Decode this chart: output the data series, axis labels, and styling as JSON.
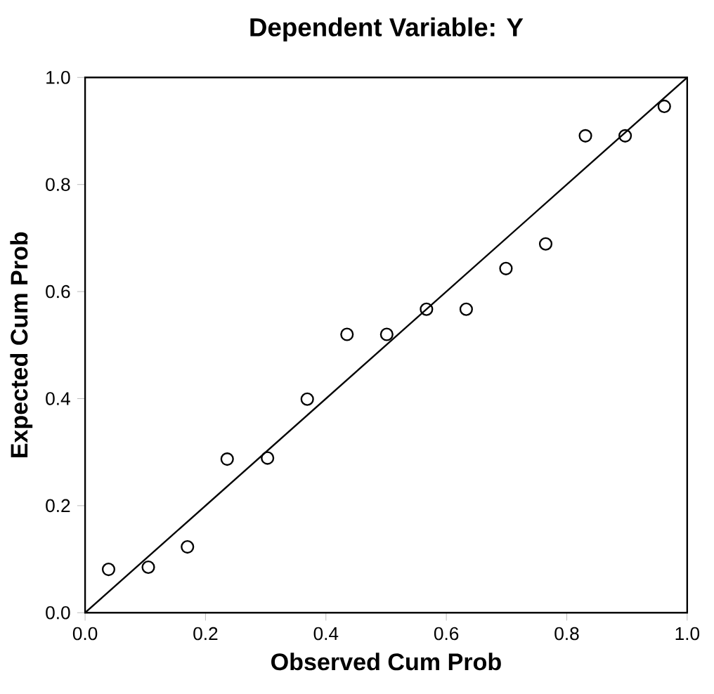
{
  "chart_data": {
    "type": "scatter",
    "title": "Dependent Variable: Y",
    "xlabel": "Observed Cum Prob",
    "ylabel": "Expected Cum Prob",
    "xlim": [
      0,
      1
    ],
    "ylim": [
      0,
      1
    ],
    "xticks": [
      {
        "value": 0,
        "label": "0.0"
      },
      0.2,
      0.4,
      0.6,
      0.8,
      {
        "value": 1,
        "label": "1.0"
      }
    ],
    "yticks": [
      {
        "value": 0,
        "label": "0.0"
      },
      0.2,
      0.4,
      0.6,
      0.8,
      {
        "value": 1,
        "label": "1.0"
      }
    ],
    "grid": false,
    "marker": "circle",
    "series": [
      {
        "color": "#000000",
        "x": [
          0.039,
          0.105,
          0.17,
          0.236,
          0.303,
          0.369,
          0.435,
          0.501,
          0.567,
          0.633,
          0.699,
          0.765,
          0.831,
          0.897,
          0.962
        ],
        "values": [
          0.081,
          0.085,
          0.123,
          0.287,
          0.289,
          0.399,
          0.52,
          0.52,
          0.567,
          0.567,
          0.643,
          0.689,
          0.891,
          0.891,
          0.946
        ]
      },
      {
        "type": "line",
        "color": "#000000",
        "marker": "none",
        "x": [
          0,
          1
        ],
        "values": [
          0,
          1
        ]
      }
    ]
  }
}
